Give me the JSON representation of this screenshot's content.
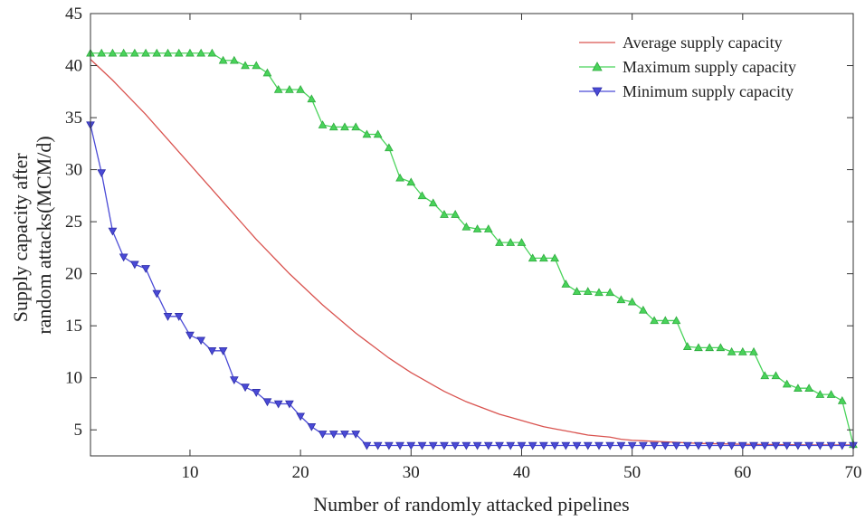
{
  "chart_data": {
    "type": "line",
    "xlabel": "Number of randomly attacked pipelines",
    "ylabel_lines": [
      "Supply capacity after",
      "random attacks(MCM/d)"
    ],
    "xlim": [
      1,
      70
    ],
    "ylim": [
      2.5,
      45
    ],
    "xticks": [
      10,
      20,
      30,
      40,
      50,
      60,
      70
    ],
    "yticks": [
      5,
      10,
      15,
      20,
      25,
      30,
      35,
      40,
      45
    ],
    "grid": false,
    "legend_position": "top-right",
    "series": [
      {
        "name": "Average supply capacity",
        "color": "#d9534f",
        "marker": "none",
        "x": [
          1,
          2,
          3,
          4,
          5,
          6,
          7,
          8,
          9,
          10,
          11,
          12,
          13,
          14,
          15,
          16,
          17,
          18,
          19,
          20,
          21,
          22,
          23,
          24,
          25,
          26,
          27,
          28,
          29,
          30,
          31,
          32,
          33,
          34,
          35,
          36,
          37,
          38,
          39,
          40,
          41,
          42,
          43,
          44,
          45,
          46,
          47,
          48,
          49,
          50,
          51,
          52,
          53,
          54,
          55,
          56,
          57,
          58,
          59,
          60,
          61,
          62,
          63,
          64,
          65,
          66,
          67,
          68,
          69,
          70
        ],
        "values": [
          40.6,
          39.6,
          38.6,
          37.5,
          36.4,
          35.3,
          34.1,
          32.9,
          31.7,
          30.5,
          29.3,
          28.1,
          26.9,
          25.7,
          24.5,
          23.3,
          22.2,
          21.1,
          20.0,
          19.0,
          18.0,
          17.0,
          16.1,
          15.2,
          14.3,
          13.5,
          12.7,
          11.9,
          11.2,
          10.5,
          9.9,
          9.3,
          8.7,
          8.2,
          7.7,
          7.3,
          6.9,
          6.5,
          6.2,
          5.9,
          5.6,
          5.3,
          5.1,
          4.9,
          4.7,
          4.5,
          4.4,
          4.3,
          4.1,
          4.0,
          3.95,
          3.9,
          3.85,
          3.8,
          3.75,
          3.7,
          3.68,
          3.66,
          3.64,
          3.62,
          3.6,
          3.59,
          3.58,
          3.57,
          3.56,
          3.55,
          3.55,
          3.55,
          3.55,
          3.55
        ]
      },
      {
        "name": "Maximum supply capacity",
        "color": "#49d35a",
        "marker": "triangle-up",
        "x": [
          1,
          2,
          3,
          4,
          5,
          6,
          7,
          8,
          9,
          10,
          11,
          12,
          13,
          14,
          15,
          16,
          17,
          18,
          19,
          20,
          21,
          22,
          23,
          24,
          25,
          26,
          27,
          28,
          29,
          30,
          31,
          32,
          33,
          34,
          35,
          36,
          37,
          38,
          39,
          40,
          41,
          42,
          43,
          44,
          45,
          46,
          47,
          48,
          49,
          50,
          51,
          52,
          53,
          54,
          55,
          56,
          57,
          58,
          59,
          60,
          61,
          62,
          63,
          64,
          65,
          66,
          67,
          68,
          69,
          70
        ],
        "values": [
          41.2,
          41.2,
          41.2,
          41.2,
          41.2,
          41.2,
          41.2,
          41.2,
          41.2,
          41.2,
          41.2,
          41.2,
          40.5,
          40.5,
          40.0,
          40.0,
          39.3,
          37.7,
          37.7,
          37.7,
          36.8,
          34.3,
          34.1,
          34.1,
          34.1,
          33.4,
          33.4,
          32.1,
          29.2,
          28.8,
          27.5,
          26.8,
          25.7,
          25.7,
          24.5,
          24.3,
          24.3,
          23.0,
          23.0,
          23.0,
          21.5,
          21.5,
          21.5,
          19.0,
          18.3,
          18.3,
          18.2,
          18.2,
          17.5,
          17.3,
          16.5,
          15.5,
          15.5,
          15.5,
          13.0,
          12.9,
          12.9,
          12.9,
          12.5,
          12.5,
          12.5,
          10.2,
          10.2,
          9.4,
          9.0,
          9.0,
          8.4,
          8.4,
          7.8,
          3.6
        ]
      },
      {
        "name": "Minimum supply capacity",
        "color": "#4a4ad6",
        "marker": "triangle-down",
        "x": [
          1,
          2,
          3,
          4,
          5,
          6,
          7,
          8,
          9,
          10,
          11,
          12,
          13,
          14,
          15,
          16,
          17,
          18,
          19,
          20,
          21,
          22,
          23,
          24,
          25,
          26,
          27,
          28,
          29,
          30,
          31,
          32,
          33,
          34,
          35,
          36,
          37,
          38,
          39,
          40,
          41,
          42,
          43,
          44,
          45,
          46,
          47,
          48,
          49,
          50,
          51,
          52,
          53,
          54,
          55,
          56,
          57,
          58,
          59,
          60,
          61,
          62,
          63,
          64,
          65,
          66,
          67,
          68,
          69,
          70
        ],
        "values": [
          34.3,
          29.7,
          24.1,
          21.6,
          20.9,
          20.5,
          18.1,
          15.9,
          15.9,
          14.1,
          13.6,
          12.6,
          12.6,
          9.8,
          9.1,
          8.6,
          7.7,
          7.5,
          7.5,
          6.3,
          5.3,
          4.6,
          4.6,
          4.6,
          4.6,
          3.5,
          3.5,
          3.5,
          3.5,
          3.5,
          3.5,
          3.5,
          3.5,
          3.5,
          3.5,
          3.5,
          3.5,
          3.5,
          3.5,
          3.5,
          3.5,
          3.5,
          3.5,
          3.5,
          3.5,
          3.5,
          3.5,
          3.5,
          3.5,
          3.5,
          3.5,
          3.5,
          3.5,
          3.5,
          3.5,
          3.5,
          3.5,
          3.5,
          3.5,
          3.5,
          3.5,
          3.5,
          3.5,
          3.5,
          3.5,
          3.5,
          3.5,
          3.5,
          3.5,
          3.5
        ]
      }
    ]
  }
}
